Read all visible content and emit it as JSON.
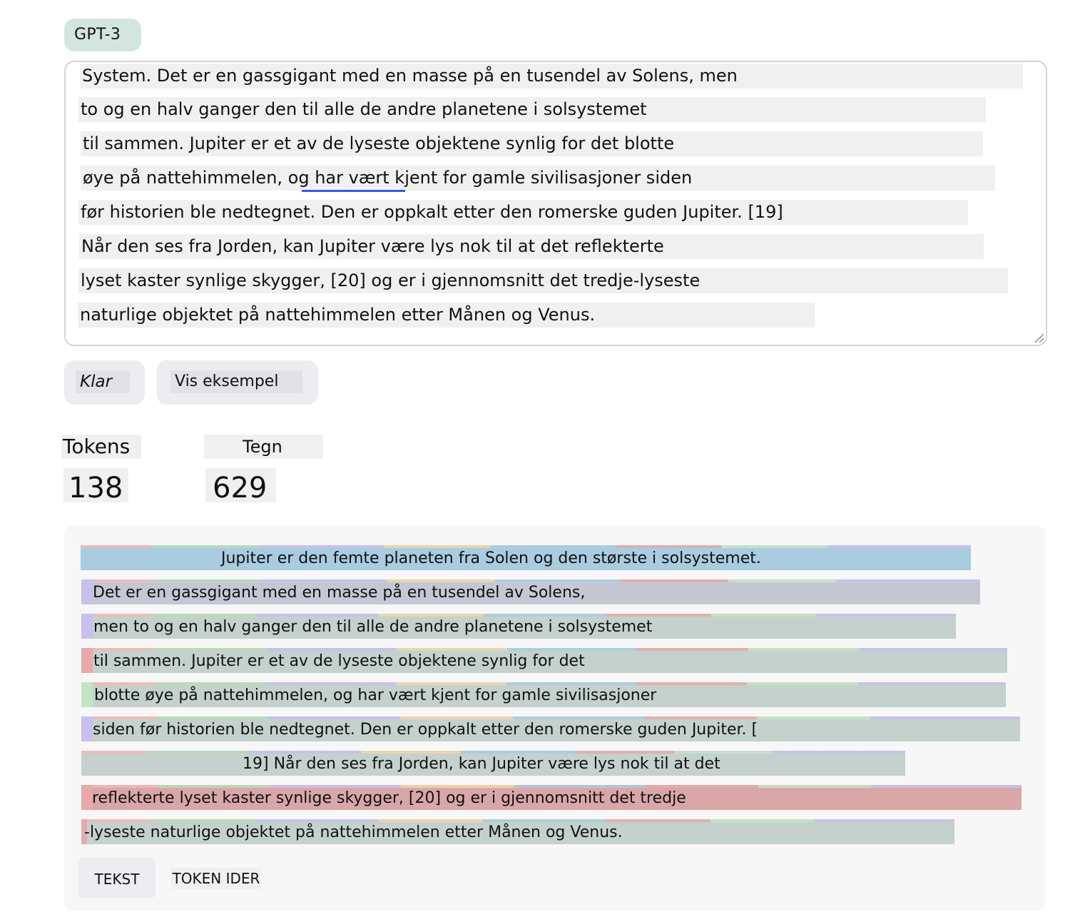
{
  "model": {
    "label": "GPT-3"
  },
  "input": {
    "lines": [
      "System. Det er en gassgigant med en masse på en tusendel av Solens, men",
      "to og en halv ganger den til alle de andre planetene i solsystemet",
      "til sammen. Jupiter er et av de lyseste objektene synlig for det blotte",
      "øye på nattehimmelen, og har vært kjent for gamle sivilisasjoner siden",
      "før historien ble nedtegnet. Den er oppkalt etter den romerske guden Jupiter. [19]",
      "Når den ses fra Jorden, kan Jupiter være lys nok til at det reflekterte",
      "lyset kaster synlige skygger, [20] og er i gjennomsnitt det tredje-lyseste",
      "naturlige objektet på nattehimmelen etter Månen og Venus."
    ]
  },
  "buttons": {
    "clear": "Klar",
    "example": "Vis eksempel"
  },
  "stats": {
    "tokens_label": "Tokens",
    "tokens_value": "138",
    "chars_label": "Tegn",
    "chars_value": "629"
  },
  "tokens": {
    "lines": [
      "Jupiter er den femte planeten fra Solen og den største i solsystemet.",
      "Det er en gassgigant med en masse på en tusendel av Solens,",
      "men to og en halv ganger den til alle de andre planetene i solsystemet",
      "til sammen. Jupiter er et av de lyseste objektene synlig for det",
      "blotte øye på nattehimmelen, og har vært kjent for gamle sivilisasjoner",
      "siden før historien ble nedtegnet. Den er oppkalt etter den romerske guden Jupiter. [",
      "19] Når den ses fra Jorden, kan Jupiter være lys nok til at det",
      "reflekterte lyset kaster synlige skygger, [20] og er i gjennomsnitt det tredje",
      "-lyseste naturlige objektet på nattehimmelen etter Månen og Venus."
    ],
    "colors": {
      "blue": "#a9cce0",
      "slate": "#c5c8d3",
      "sage": "#c4d1cd",
      "rose": "#d9a7a7",
      "pink": "#eaa9a9",
      "mint": "#c3e4c3",
      "lavender": "#c8c0ee"
    }
  },
  "view": {
    "text_tab": "TEKST",
    "ids_tab": "TOKEN IDER"
  }
}
